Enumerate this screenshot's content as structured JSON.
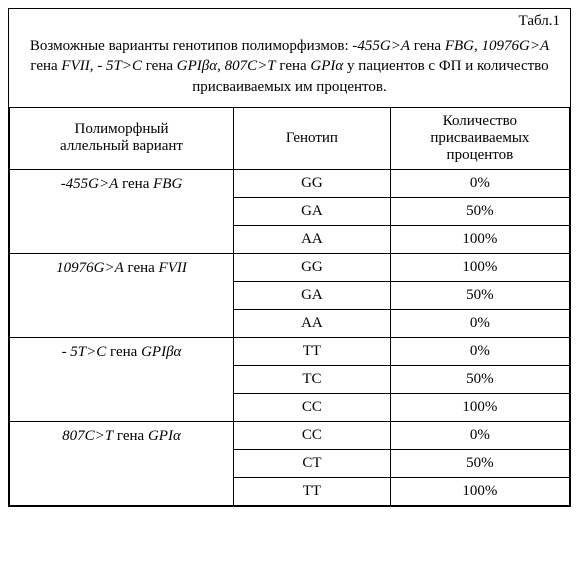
{
  "table_label": "Табл.1",
  "caption_parts": {
    "p1": "Возможные варианты генотипов полиморфизмов: ",
    "i1": "-455G>A",
    "p2": " гена ",
    "i2": "FBG",
    "p3": ", ",
    "i3": "10976G>A",
    "p4": " гена ",
    "i4": "FVII",
    "p5": ", ",
    "i5": "- 5T>C",
    "p6": " гена ",
    "i6": "GPIβα",
    "p7": ", ",
    "i7": "807C>T",
    "p8": " гена ",
    "i8": "GPIα",
    "p9": " у пациентов с ФП и количество присваиваемых им процентов."
  },
  "headers": {
    "col1_line1": "Полиморфный",
    "col1_line2": "аллельный вариант",
    "col2": "Генотип",
    "col3_line1": "Количество",
    "col3_line2": "присваиваемых",
    "col3_line3": "процентов"
  },
  "groups": [
    {
      "variant_i": "-455G>A",
      "variant_mid": " гена ",
      "variant_gene": "FBG",
      "rows": [
        {
          "genotype": "GG",
          "percent": "0%"
        },
        {
          "genotype": "GA",
          "percent": "50%"
        },
        {
          "genotype": "AA",
          "percent": "100%"
        }
      ]
    },
    {
      "variant_i": "10976G>A",
      "variant_mid": " гена ",
      "variant_gene": "FVII",
      "rows": [
        {
          "genotype": "GG",
          "percent": "100%"
        },
        {
          "genotype": "GA",
          "percent": "50%"
        },
        {
          "genotype": "AA",
          "percent": "0%"
        }
      ]
    },
    {
      "variant_i": "- 5T>C",
      "variant_mid": " гена ",
      "variant_gene": "GPIβα",
      "rows": [
        {
          "genotype": "TT",
          "percent": "0%"
        },
        {
          "genotype": "TC",
          "percent": "50%"
        },
        {
          "genotype": "CC",
          "percent": "100%"
        }
      ]
    },
    {
      "variant_i": "807C>T",
      "variant_mid": " гена ",
      "variant_gene": "GPIα",
      "rows": [
        {
          "genotype": "CC",
          "percent": "0%"
        },
        {
          "genotype": "CT",
          "percent": "50%"
        },
        {
          "genotype": "TT",
          "percent": "100%"
        }
      ]
    }
  ],
  "style": {
    "font_family": "Times New Roman",
    "base_fontsize_pt": 11,
    "border_color": "#000000",
    "background_color": "#ffffff",
    "col_widths_pct": [
      40,
      28,
      32
    ]
  }
}
